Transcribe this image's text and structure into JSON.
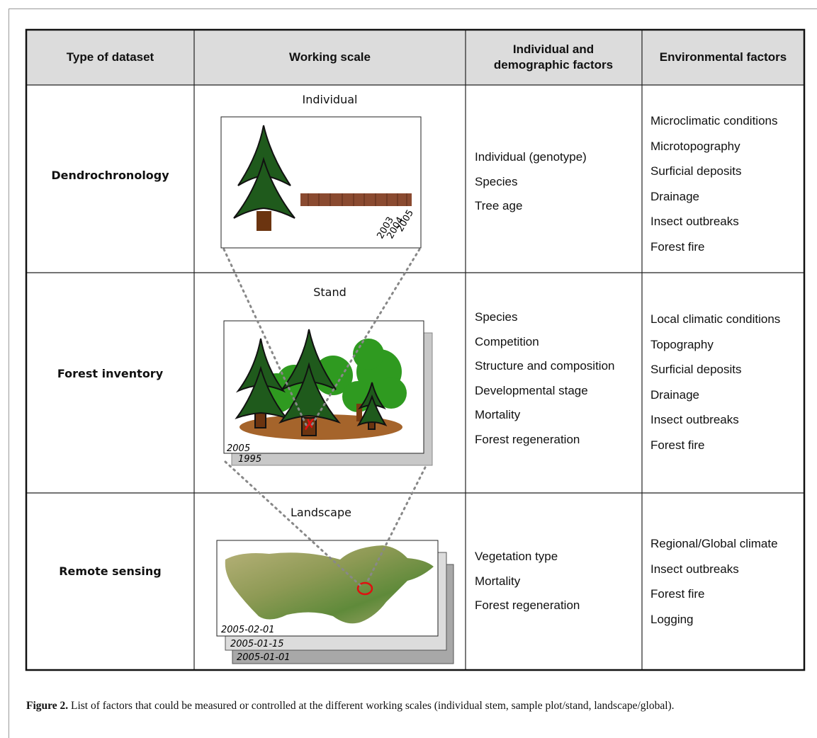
{
  "table": {
    "header": [
      "Type of dataset",
      "Working scale",
      "Individual and demographic factors",
      "Environmental factors"
    ],
    "rows": [
      {
        "dataset": "Dendrochronology",
        "scale": "Individual",
        "labels": [
          "2003",
          "2004",
          "2005"
        ],
        "individual_factors": [
          "Individual (genotype)",
          "Species",
          "Tree age"
        ],
        "environmental_factors": [
          "Microclimatic conditions",
          "Microtopography",
          "Surficial deposits",
          "Drainage",
          "Insect outbreaks",
          "Forest fire"
        ]
      },
      {
        "dataset": "Forest inventory",
        "scale": "Stand",
        "labels": [
          "2005",
          "1995"
        ],
        "individual_factors": [
          "Species",
          "Competition",
          "Structure and composition",
          "Developmental stage",
          "Mortality",
          "Forest regeneration"
        ],
        "environmental_factors": [
          "Local climatic conditions",
          "Topography",
          "Surficial deposits",
          "Drainage",
          "Insect outbreaks",
          "Forest fire"
        ]
      },
      {
        "dataset": "Remote sensing",
        "scale": "Landscape",
        "labels": [
          "2005-02-01",
          "2005-01-15",
          "2005-01-01"
        ],
        "individual_factors": [
          "Vegetation type",
          "Mortality",
          "Forest regeneration"
        ],
        "environmental_factors": [
          "Regional/Global climate",
          "Insect outbreaks",
          "Forest fire",
          "Logging"
        ]
      }
    ]
  },
  "caption": {
    "label": "Figure 2.",
    "text": "List of factors that could be measured or controlled at the different working scales (individual stem, sample plot/stand, landscape/global)."
  }
}
